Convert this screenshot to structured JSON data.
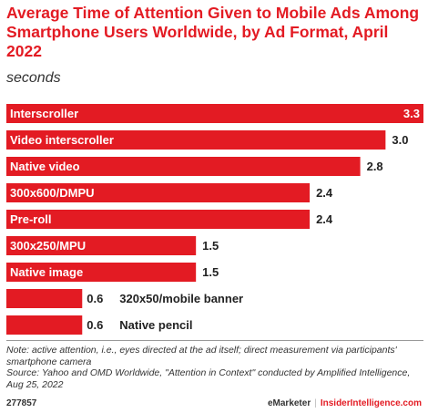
{
  "chart_data": {
    "type": "bar",
    "orientation": "horizontal",
    "title": "Average Time of Attention Given to Mobile Ads Among Smartphone Users Worldwide, by Ad Format, April 2022",
    "subtitle": "seconds",
    "categories": [
      "Interscroller",
      "Video interscroller",
      "Native video",
      "300x600/DMPU",
      "Pre-roll",
      "300x250/MPU",
      "Native image",
      "320x50/mobile banner",
      "Native pencil"
    ],
    "values": [
      3.3,
      3.0,
      2.8,
      2.4,
      2.4,
      1.5,
      1.5,
      0.6,
      0.6
    ],
    "value_labels": [
      "3.3",
      "3.0",
      "2.8",
      "2.4",
      "2.4",
      "1.5",
      "1.5",
      "0.6",
      "0.6"
    ],
    "xlim": [
      0,
      3.3
    ],
    "grid": false,
    "bar_color": "#e31b23"
  },
  "footer": {
    "note": "Note: active attention, i.e., eyes directed at the ad itself; direct measurement via participants' smartphone camera",
    "source": "Source: Yahoo and OMD Worldwide, \"Attention in Context\" conducted by Amplified Intelligence, Aug 25, 2022",
    "id": "277857",
    "brand1": "eMarketer",
    "separator": "|",
    "brand2": "InsiderIntelligence.com"
  }
}
